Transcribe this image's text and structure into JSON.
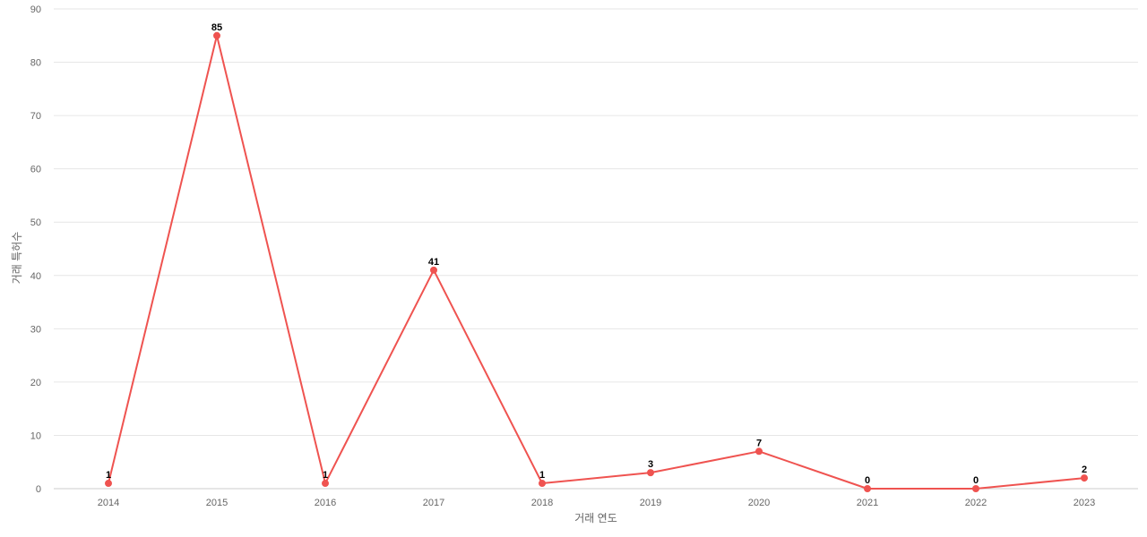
{
  "chart_data": {
    "type": "line",
    "xlabel": "거래 연도",
    "ylabel": "거래 특허수",
    "categories": [
      "2014",
      "2015",
      "2016",
      "2017",
      "2018",
      "2019",
      "2020",
      "2021",
      "2022",
      "2023"
    ],
    "series": [
      {
        "values": [
          1,
          85,
          1,
          41,
          1,
          3,
          7,
          0,
          0,
          2
        ],
        "color": "#ef5350"
      }
    ],
    "ylim": [
      0,
      90
    ],
    "yticks": [
      0,
      10,
      20,
      30,
      40,
      50,
      60,
      70,
      80,
      90
    ],
    "grid": true,
    "data_labels": true
  }
}
